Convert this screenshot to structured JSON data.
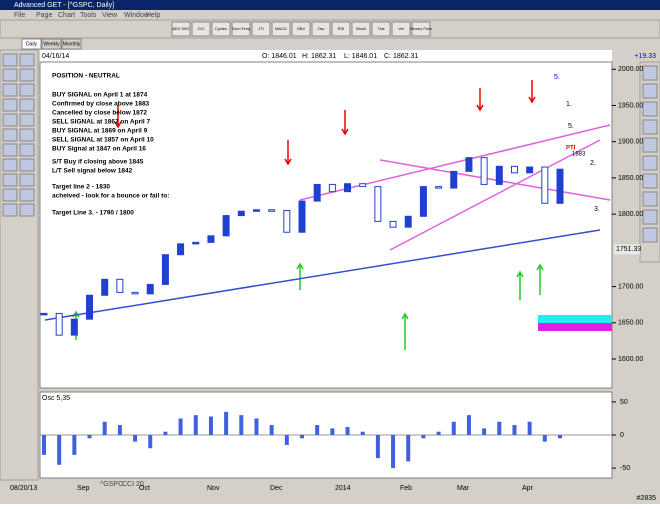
{
  "window": {
    "title": "Advanced GET - [^GSPC, Daily]",
    "menu": [
      "File",
      "Page",
      "Chart",
      "Tools",
      "View",
      "Window",
      "Help"
    ],
    "toolbar": [
      "ADV DEC",
      "CCI",
      "Cycles",
      "Dom Freq",
      "JTI",
      "MACD",
      "OBV",
      "Osc",
      "RSI",
      "Stoch",
      "Tick",
      "Vol",
      "Money Flow"
    ],
    "tabs": [
      "Daily",
      "Weekly",
      "Monthly"
    ],
    "bottom_tabs": [
      "^GSPC",
      "CCI 20"
    ],
    "status": "#2835"
  },
  "header": {
    "date": "04/16/14",
    "open": "O: 1846.01",
    "high": "H: 1862.31",
    "low": "L: 1846.01",
    "close": "C: 1862.31",
    "change": "+19.33"
  },
  "annotations": [
    "POSITION - NEUTRAL",
    "BUY SIGNAL on April 1 at 1874",
    "Confirmed by close above 1883",
    "Cancelled by close below 1872",
    "SELL SIGNAL at 1862 on April 7",
    "BUY SIGNAL at 1869 on April 9",
    "SELL SIGNAL at 1857 on April 10",
    "BUY Signal at 1847 on April 16",
    "S/T Buy if closing above 1845",
    "L/T Sell signal below 1842",
    "Target line 2 - 1830",
    "acheived - look for a bounce or fail to:",
    "Target Line 3. - 1790 / 1800"
  ],
  "wave_labels": [
    "5.",
    "1.",
    "5.",
    "2.",
    "3."
  ],
  "price_chart": {
    "ylim": [
      1560,
      2010
    ],
    "yticks": [
      {
        "value": 2000,
        "label": "2000.00"
      },
      {
        "value": 1950,
        "label": "1950.00"
      },
      {
        "value": 1900,
        "label": "1900.00"
      },
      {
        "value": 1850,
        "label": "1850.00"
      },
      {
        "value": 1800,
        "label": "1800.00"
      },
      {
        "value": 1700,
        "label": "1700.00"
      },
      {
        "value": 1650,
        "label": "1650.00"
      },
      {
        "value": 1600,
        "label": "1600.00"
      }
    ],
    "level": {
      "value": 1751.33,
      "label": "1751.33"
    },
    "pti": {
      "label": "PTI",
      "value": 1883
    },
    "closes": [
      1663,
      1633,
      1655,
      1688,
      1710,
      1692,
      1690,
      1703,
      1744,
      1759,
      1761,
      1770,
      1798,
      1804,
      1806,
      1805,
      1775,
      1818,
      1841,
      1831,
      1842,
      1838,
      1790,
      1782,
      1797,
      1838,
      1836,
      1859,
      1878,
      1841,
      1866,
      1857,
      1865,
      1815,
      1862
    ],
    "x_labels": [
      "08/20/13",
      "Sep",
      "Oct",
      "Nov",
      "Dec",
      "2014",
      "Feb",
      "Mar",
      "Apr"
    ]
  },
  "oscillator": {
    "title": "Osc 5,35",
    "ylim": [
      -65,
      65
    ],
    "yticks": [
      50,
      0,
      -50
    ],
    "values": [
      -30,
      -45,
      -30,
      -5,
      20,
      15,
      -10,
      -20,
      5,
      25,
      30,
      28,
      35,
      30,
      25,
      15,
      -15,
      -5,
      15,
      10,
      12,
      5,
      -35,
      -50,
      -40,
      -5,
      5,
      20,
      30,
      10,
      20,
      15,
      20,
      -10,
      -5
    ]
  }
}
